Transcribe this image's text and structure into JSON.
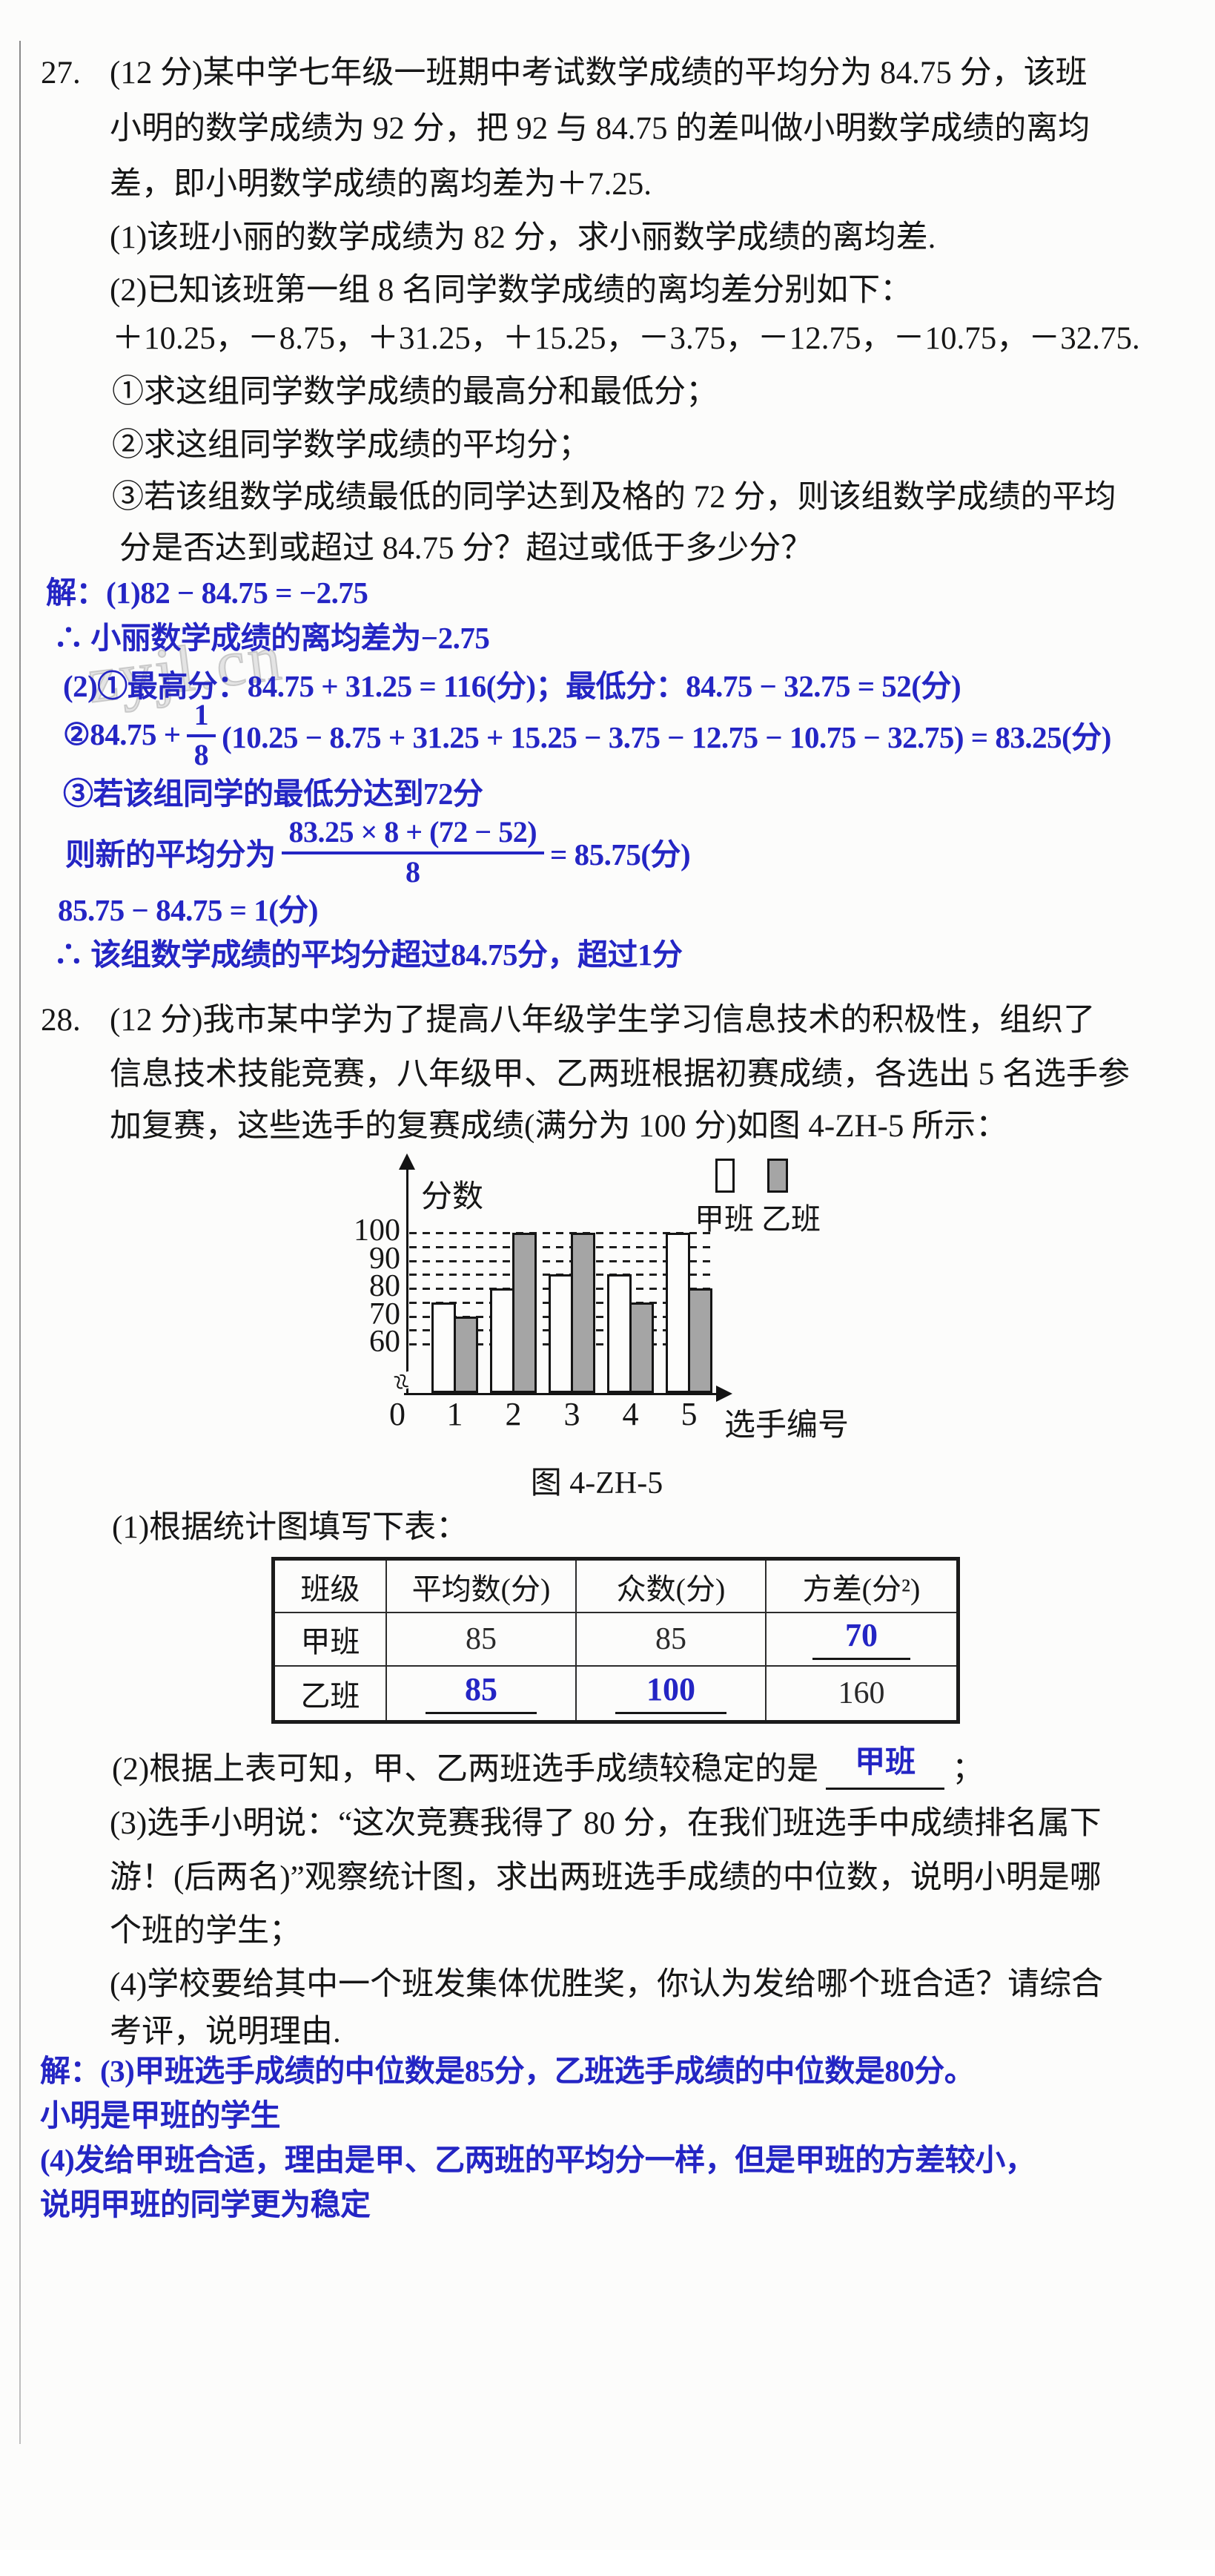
{
  "watermark": "zyjl.cn",
  "icons": {
    "axis_break": "≈"
  },
  "p27": {
    "num": "27.",
    "l1": "(12 分)某中学七年级一班期中考试数学成绩的平均分为 84.75 分，该班",
    "l2": "小明的数学成绩为 92 分，把 92 与 84.75 的差叫做小明数学成绩的离均",
    "l3": "差，即小明数学成绩的离均差为＋7.25.",
    "l4": "(1)该班小丽的数学成绩为 82 分，求小丽数学成绩的离均差.",
    "l5": "(2)已知该班第一组 8 名同学数学成绩的离均差分别如下：",
    "l6": "＋10.25，－8.75，＋31.25，＋15.25，－3.75，－12.75，－10.75，－32.75.",
    "l7": "①求这组同学数学成绩的最高分和最低分；",
    "l8": "②求这组同学数学成绩的平均分；",
    "l9": "③若该组数学成绩最低的同学达到及格的 72 分，则该组数学成绩的平均",
    "l10": "分是否达到或超过 84.75 分？超过或低于多少分？"
  },
  "sol27": {
    "s1": "解：(1)82 − 84.75 = −2.75",
    "s2": "∴ 小丽数学成绩的离均差为−2.75",
    "s3": "(2)①最高分：84.75 + 31.25 = 116(分)；最低分：84.75 − 32.75 = 52(分)",
    "s4_pre": "②84.75 +",
    "s4_num": "1",
    "s4_den": "8",
    "s4_post": "(10.25 − 8.75 + 31.25 + 15.25 − 3.75 − 12.75 − 10.75 − 32.75) = 83.25(分)",
    "s5": "③若该组同学的最低分达到72分",
    "s6_pre": "则新的平均分为",
    "s6_num": "83.25 × 8 + (72 − 52)",
    "s6_den": "8",
    "s6_post": "= 85.75(分)",
    "s7": "85.75 − 84.75 = 1(分)",
    "s8": "∴ 该组数学成绩的平均分超过84.75分，超过1分"
  },
  "p28": {
    "num": "28.",
    "l1": "(12 分)我市某中学为了提高八年级学生学习信息技术的积极性，组织了",
    "l2": "信息技术技能竞赛，八年级甲、乙两班根据初赛成绩，各选出 5 名选手参",
    "l3": "加复赛，这些选手的复赛成绩(满分为 100 分)如图 4-ZH-5 所示：",
    "q1": "(1)根据统计图填写下表：",
    "q2_pre": "(2)根据上表可知，甲、乙两班选手成绩较稳定的是",
    "q2_ans": "甲班",
    "q2_post": "；",
    "q3l1": "(3)选手小明说：“这次竞赛我得了 80 分，在我们班选手中成绩排名属下",
    "q3l2": "游！(后两名)”观察统计图，求出两班选手成绩的中位数，说明小明是哪",
    "q3l3": "个班的学生；",
    "q4l1": "(4)学校要给其中一个班发集体优胜奖，你认为发给哪个班合适？请综合",
    "q4l2": "考评，说明理由."
  },
  "sol28": {
    "b1": "解：(3)甲班选手成绩的中位数是85分，乙班选手成绩的中位数是80分。",
    "b2": "小明是甲班的学生",
    "b3": "(4)发给甲班合适，理由是甲、乙两班的平均分一样，但是甲班的方差较小，",
    "b4": "说明甲班的同学更为稳定"
  },
  "chart_data": {
    "type": "bar",
    "title": "图 4-ZH-5",
    "ylabel": "分数",
    "xlabel": "选手编号",
    "origin_label": "0",
    "categories": [
      "1",
      "2",
      "3",
      "4",
      "5"
    ],
    "series": [
      {
        "name": "甲班",
        "values": [
          75,
          80,
          85,
          85,
          100
        ],
        "color": "#fdfdfc"
      },
      {
        "name": "乙班",
        "values": [
          70,
          100,
          100,
          75,
          80
        ],
        "color": "#a5a5a5"
      }
    ],
    "yticks": [
      100,
      90,
      80,
      70,
      60
    ],
    "gridlines": [
      60,
      65,
      70,
      75,
      80,
      85,
      90,
      95,
      100
    ],
    "ylim_visible": [
      60,
      100
    ],
    "axis_break": true,
    "grid": "dashed-horizontal",
    "legend_position": "top-right"
  },
  "table": {
    "headers": [
      "班级",
      "平均数(分)",
      "众数(分)",
      "方差(分²)"
    ],
    "rows": [
      {
        "label": "甲班",
        "c1": "85",
        "c2": "85",
        "c3": "70"
      },
      {
        "label": "乙班",
        "c1": "85",
        "c2": "100",
        "c3": "160"
      }
    ]
  }
}
